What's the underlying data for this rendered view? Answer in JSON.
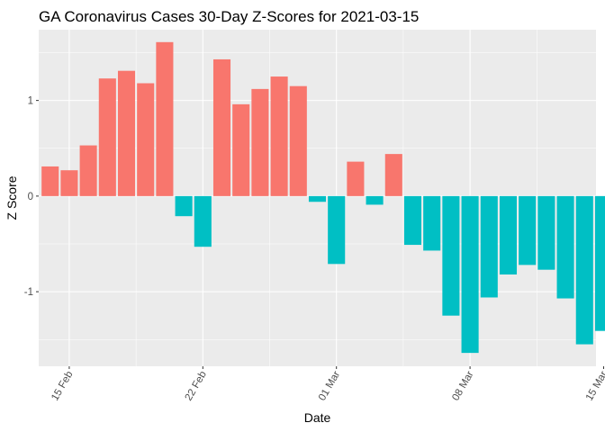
{
  "chart_data": {
    "type": "bar",
    "title": "GA Coronavirus Cases 30-Day Z-Scores for 2021-03-15",
    "xlabel": "Date",
    "ylabel": "Z Score",
    "ylim": [
      -1.78,
      1.74
    ],
    "y_ticks": [
      -1,
      0,
      1
    ],
    "y_tick_labels": [
      "-1",
      "0",
      "1"
    ],
    "x_ticks": [
      {
        "index": 2,
        "label": "15 Feb"
      },
      {
        "index": 9,
        "label": "22 Feb"
      },
      {
        "index": 16,
        "label": "01 Mar"
      },
      {
        "index": 23,
        "label": "08 Mar"
      },
      {
        "index": 30,
        "label": "15 Mar"
      }
    ],
    "positive_color": "#F8766D",
    "negative_color": "#00BFC4",
    "panel_color": "#EBEBEB",
    "values": [
      0.31,
      0.27,
      0.53,
      1.23,
      1.31,
      1.18,
      1.61,
      -0.21,
      -0.53,
      1.43,
      0.96,
      1.12,
      1.25,
      1.15,
      -0.06,
      -0.71,
      0.36,
      -0.09,
      0.44,
      -0.51,
      -0.57,
      -1.25,
      -1.64,
      -1.06,
      -0.82,
      -0.72,
      -0.77,
      -1.07,
      -1.55,
      -1.41
    ]
  }
}
